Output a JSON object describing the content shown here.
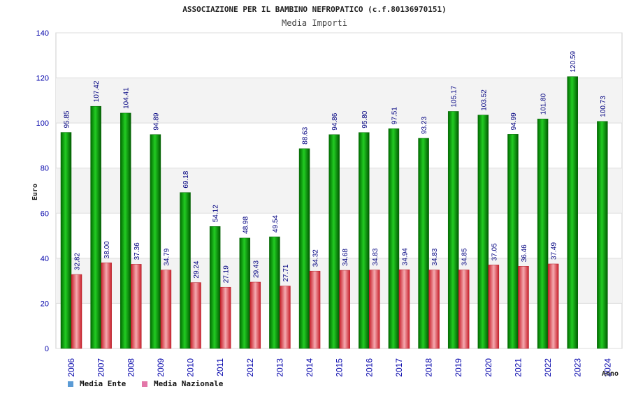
{
  "chart_data": {
    "type": "bar",
    "title": "ASSOCIAZIONE PER IL BAMBINO NEFROPATICO (c.f.80136970151)",
    "subtitle": "Media Importi",
    "xlabel": "Anno",
    "ylabel": "Euro",
    "ylim": [
      0,
      140
    ],
    "yticks": [
      0,
      20,
      40,
      60,
      80,
      100,
      120,
      140
    ],
    "grid": true,
    "legend_position": "bottom-left",
    "categories": [
      "2006",
      "2007",
      "2008",
      "2009",
      "2010",
      "2011",
      "2012",
      "2013",
      "2014",
      "2015",
      "2016",
      "2017",
      "2018",
      "2019",
      "2020",
      "2021",
      "2022",
      "2023",
      "2024"
    ],
    "series": [
      {
        "name": "Media Ente",
        "legend_color": "#5b9bd5",
        "bar_color": "#1aaa1a",
        "values": [
          95.85,
          107.42,
          104.41,
          94.89,
          69.18,
          54.12,
          48.98,
          49.54,
          88.63,
          94.86,
          95.8,
          97.51,
          93.23,
          105.17,
          103.52,
          94.99,
          101.8,
          120.59,
          100.73
        ],
        "labels": [
          "95.85",
          "107.42",
          "104.41",
          "94.89",
          "69.18",
          "54.12",
          "48.98",
          "49.54",
          "88.63",
          "94.86",
          "95.80",
          "97.51",
          "93.23",
          "105.17",
          "103.52",
          "94.99",
          "101.80",
          "120.59",
          "100.73"
        ]
      },
      {
        "name": "Media Nazionale",
        "legend_color": "#e377a8",
        "bar_color": "#e0404a",
        "values": [
          32.82,
          38.0,
          37.36,
          34.79,
          29.24,
          27.19,
          29.43,
          27.71,
          34.32,
          34.68,
          34.83,
          34.94,
          34.83,
          34.85,
          37.05,
          36.46,
          37.49,
          null,
          null
        ],
        "labels": [
          "32.82",
          "38.00",
          "37.36",
          "34.79",
          "29.24",
          "27.19",
          "29.43",
          "27.71",
          "34.32",
          "34.68",
          "34.83",
          "34.94",
          "34.83",
          "34.85",
          "37.05",
          "36.46",
          "37.49",
          null,
          null
        ]
      }
    ]
  }
}
